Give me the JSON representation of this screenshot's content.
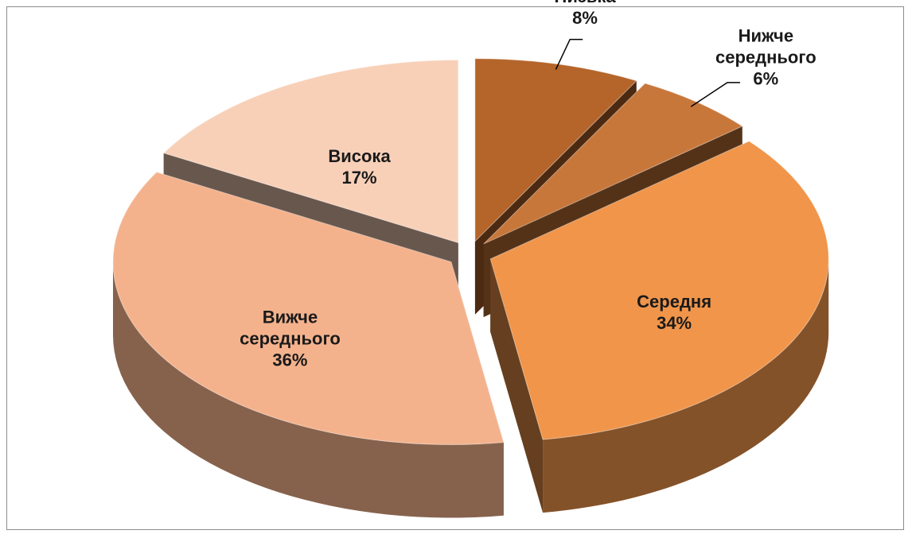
{
  "chart_data": {
    "type": "pie",
    "categories": [
      "Низька",
      "Нижче середнього",
      "Середня",
      "Вижче середнього",
      "Висока"
    ],
    "values": [
      8,
      6,
      34,
      36,
      17
    ],
    "value_labels": [
      "8%",
      "6%",
      "34%",
      "36%",
      "17%"
    ],
    "colors": [
      "#b5652a",
      "#c8773a",
      "#f0954a",
      "#f4b28c",
      "#f8d0b8"
    ]
  }
}
